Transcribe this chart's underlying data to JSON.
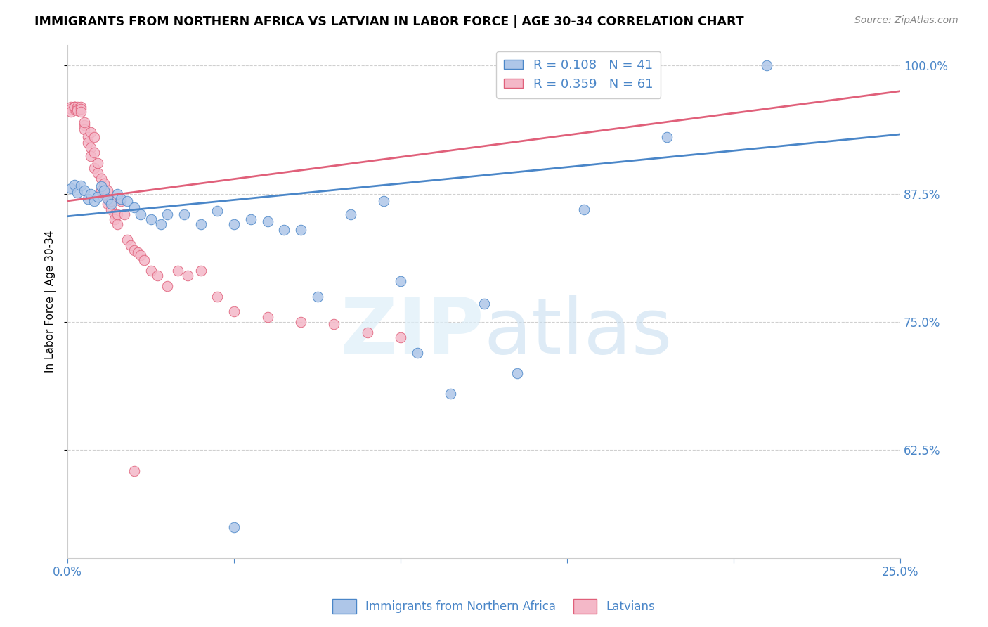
{
  "title": "IMMIGRANTS FROM NORTHERN AFRICA VS LATVIAN IN LABOR FORCE | AGE 30-34 CORRELATION CHART",
  "source": "Source: ZipAtlas.com",
  "ylabel": "In Labor Force | Age 30-34",
  "xlim": [
    0.0,
    0.25
  ],
  "ylim": [
    0.52,
    1.02
  ],
  "xticks": [
    0.0,
    0.05,
    0.1,
    0.15,
    0.2,
    0.25
  ],
  "xticklabels": [
    "0.0%",
    "",
    "",
    "",
    "",
    "25.0%"
  ],
  "yticks": [
    0.625,
    0.75,
    0.875,
    1.0
  ],
  "yticklabels": [
    "62.5%",
    "75.0%",
    "87.5%",
    "100.0%"
  ],
  "blue_R": 0.108,
  "blue_N": 41,
  "pink_R": 0.359,
  "pink_N": 61,
  "blue_color": "#aec6e8",
  "pink_color": "#f4b8c8",
  "blue_line_color": "#4a86c8",
  "pink_line_color": "#e0607a",
  "legend_blue_label": "Immigrants from Northern Africa",
  "legend_pink_label": "Latvians",
  "blue_line_x": [
    0.0,
    0.25
  ],
  "blue_line_y": [
    0.853,
    0.933
  ],
  "pink_line_x": [
    0.0,
    0.25
  ],
  "pink_line_y": [
    0.868,
    0.975
  ],
  "blue_x": [
    0.001,
    0.002,
    0.003,
    0.004,
    0.005,
    0.006,
    0.007,
    0.008,
    0.009,
    0.01,
    0.011,
    0.012,
    0.013,
    0.015,
    0.016,
    0.018,
    0.02,
    0.022,
    0.025,
    0.028,
    0.03,
    0.035,
    0.04,
    0.045,
    0.05,
    0.055,
    0.06,
    0.065,
    0.07,
    0.075,
    0.085,
    0.095,
    0.105,
    0.115,
    0.125,
    0.135,
    0.155,
    0.18,
    0.21,
    0.1,
    0.05
  ],
  "blue_y": [
    0.88,
    0.884,
    0.876,
    0.883,
    0.878,
    0.87,
    0.875,
    0.868,
    0.872,
    0.882,
    0.878,
    0.87,
    0.865,
    0.875,
    0.87,
    0.868,
    0.862,
    0.855,
    0.85,
    0.845,
    0.855,
    0.855,
    0.845,
    0.858,
    0.845,
    0.85,
    0.848,
    0.84,
    0.84,
    0.775,
    0.855,
    0.868,
    0.72,
    0.68,
    0.768,
    0.7,
    0.86,
    0.93,
    1.0,
    0.79,
    0.55
  ],
  "pink_x": [
    0.001,
    0.001,
    0.001,
    0.002,
    0.002,
    0.002,
    0.002,
    0.003,
    0.003,
    0.003,
    0.004,
    0.004,
    0.004,
    0.005,
    0.005,
    0.005,
    0.006,
    0.006,
    0.007,
    0.007,
    0.007,
    0.008,
    0.008,
    0.008,
    0.009,
    0.009,
    0.01,
    0.01,
    0.011,
    0.011,
    0.012,
    0.012,
    0.012,
    0.013,
    0.013,
    0.014,
    0.014,
    0.015,
    0.015,
    0.016,
    0.017,
    0.018,
    0.019,
    0.02,
    0.021,
    0.022,
    0.023,
    0.025,
    0.027,
    0.03,
    0.033,
    0.036,
    0.04,
    0.045,
    0.05,
    0.06,
    0.07,
    0.08,
    0.09,
    0.1,
    0.02
  ],
  "pink_y": [
    0.96,
    0.958,
    0.955,
    0.96,
    0.958,
    0.96,
    0.96,
    0.96,
    0.958,
    0.956,
    0.96,
    0.958,
    0.955,
    0.942,
    0.938,
    0.945,
    0.93,
    0.925,
    0.935,
    0.92,
    0.912,
    0.93,
    0.915,
    0.9,
    0.895,
    0.905,
    0.89,
    0.878,
    0.885,
    0.875,
    0.87,
    0.865,
    0.878,
    0.86,
    0.868,
    0.855,
    0.85,
    0.845,
    0.855,
    0.868,
    0.855,
    0.83,
    0.825,
    0.82,
    0.818,
    0.815,
    0.81,
    0.8,
    0.795,
    0.785,
    0.8,
    0.795,
    0.8,
    0.775,
    0.76,
    0.755,
    0.75,
    0.748,
    0.74,
    0.735,
    0.605
  ]
}
